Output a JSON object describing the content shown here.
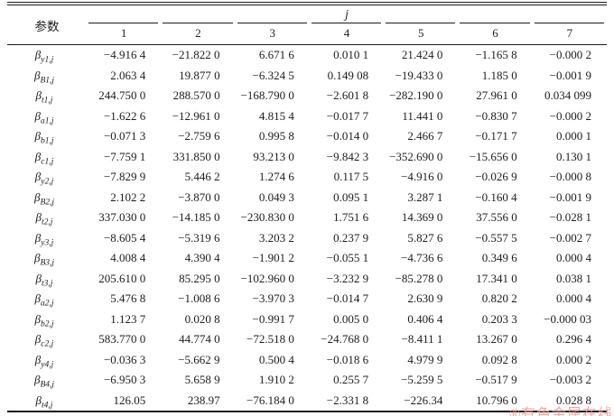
{
  "table": {
    "corner_header": "参数",
    "spanner_header": "j",
    "column_headers": [
      "1",
      "2",
      "3",
      "4",
      "5",
      "6",
      "7"
    ],
    "rows": [
      {
        "param_base": "β",
        "param_sub": "y1,j",
        "values": [
          "−4.916 4",
          "−21.822 0",
          "6.671 6",
          "0.010 1",
          "21.424 0",
          "−1.165 8",
          "−0.000 2"
        ]
      },
      {
        "param_base": "β",
        "param_sub": "B1,j",
        "values": [
          "2.063 4",
          "19.877 0",
          "−6.324 5",
          "0.149 08",
          "−19.433 0",
          "1.185 0",
          "−0.001 9"
        ]
      },
      {
        "param_base": "β",
        "param_sub": "t1,j",
        "values": [
          "244.750 0",
          "288.570 0",
          "−168.790 0",
          "−2.601 8",
          "−282.190 0",
          "27.961 0",
          "0.034 099"
        ]
      },
      {
        "param_base": "β",
        "param_sub": "a1,j",
        "values": [
          "−1.622 6",
          "−12.961 0",
          "4.815 4",
          "−0.017 7",
          "11.441 0",
          "−0.830 7",
          "−0.000 2"
        ]
      },
      {
        "param_base": "β",
        "param_sub": "b1,j",
        "values": [
          "−0.071 3",
          "−2.759 6",
          "0.995 8",
          "−0.014 0",
          "2.466 7",
          "−0.171 7",
          "0.000 1"
        ]
      },
      {
        "param_base": "β",
        "param_sub": "c1,j",
        "values": [
          "−7.759 1",
          "331.850 0",
          "93.213 0",
          "−9.842 3",
          "−352.690 0",
          "−15.656 0",
          "0.130 1"
        ]
      },
      {
        "param_base": "β",
        "param_sub": "y2,j",
        "values": [
          "−7.829 9",
          "5.446 2",
          "1.274 6",
          "0.117 5",
          "−4.916 0",
          "−0.026 9",
          "−0.000 8"
        ]
      },
      {
        "param_base": "β",
        "param_sub": "B2,j",
        "values": [
          "2.102 2",
          "−3.870 0",
          "0.049 3",
          "0.095 1",
          "3.287 1",
          "−0.160 4",
          "−0.001 9"
        ]
      },
      {
        "param_base": "β",
        "param_sub": "t2,j",
        "values": [
          "337.030 0",
          "−14.185 0",
          "−230.830 0",
          "1.751 6",
          "14.369 0",
          "37.556 0",
          "−0.028 1"
        ]
      },
      {
        "param_base": "β",
        "param_sub": "y3,j",
        "values": [
          "−8.605 4",
          "−5.319 6",
          "3.203 2",
          "0.237 9",
          "5.827 6",
          "−0.557 5",
          "−0.002 7"
        ]
      },
      {
        "param_base": "β",
        "param_sub": "B3,j",
        "values": [
          "4.008 4",
          "4.390 4",
          "−1.901 2",
          "−0.055 1",
          "−4.736 6",
          "0.349 6",
          "0.000 4"
        ]
      },
      {
        "param_base": "β",
        "param_sub": "t3,j",
        "values": [
          "205.610 0",
          "85.295 0",
          "−102.960 0",
          "−3.232 9",
          "−85.278 0",
          "17.341 0",
          "0.038 1"
        ]
      },
      {
        "param_base": "β",
        "param_sub": "a2,j",
        "values": [
          "5.476 8",
          "−1.008 6",
          "−3.970 3",
          "−0.014 7",
          "2.630 9",
          "0.820 2",
          "0.000 4"
        ]
      },
      {
        "param_base": "β",
        "param_sub": "b2,j",
        "values": [
          "1.123 7",
          "0.020 8",
          "−0.991 7",
          "0.005 0",
          "0.406 4",
          "0.203 3",
          "−0.000 03"
        ]
      },
      {
        "param_base": "β",
        "param_sub": "c2,j",
        "values": [
          "583.770 0",
          "44.774 0",
          "−72.518 0",
          "−24.768 0",
          "−8.411 1",
          "13.267 0",
          "0.296 4"
        ]
      },
      {
        "param_base": "β",
        "param_sub": "y4,j",
        "values": [
          "−0.036 3",
          "−5.662 9",
          "0.500 4",
          "−0.018 6",
          "4.979 9",
          "0.092 8",
          "0.000 2"
        ]
      },
      {
        "param_base": "β",
        "param_sub": "B4,j",
        "values": [
          "−6.950 3",
          "5.658 9",
          "1.910 2",
          "0.255 7",
          "−5.259 5",
          "−0.517 9",
          "−0.003 2"
        ]
      },
      {
        "param_base": "β",
        "param_sub": "t4,j",
        "values": [
          "126.05",
          "238.97",
          "−76.184 0",
          "−2.331 8",
          "−226.34",
          "10.796 0",
          "0.028 8"
        ]
      }
    ]
  },
  "watermark": {
    "text": "®有色金属在线",
    "color": "#ec9595"
  },
  "colors": {
    "text": "#1c1c1c",
    "rule": "#1b1b1b",
    "background": "#ffffff"
  }
}
